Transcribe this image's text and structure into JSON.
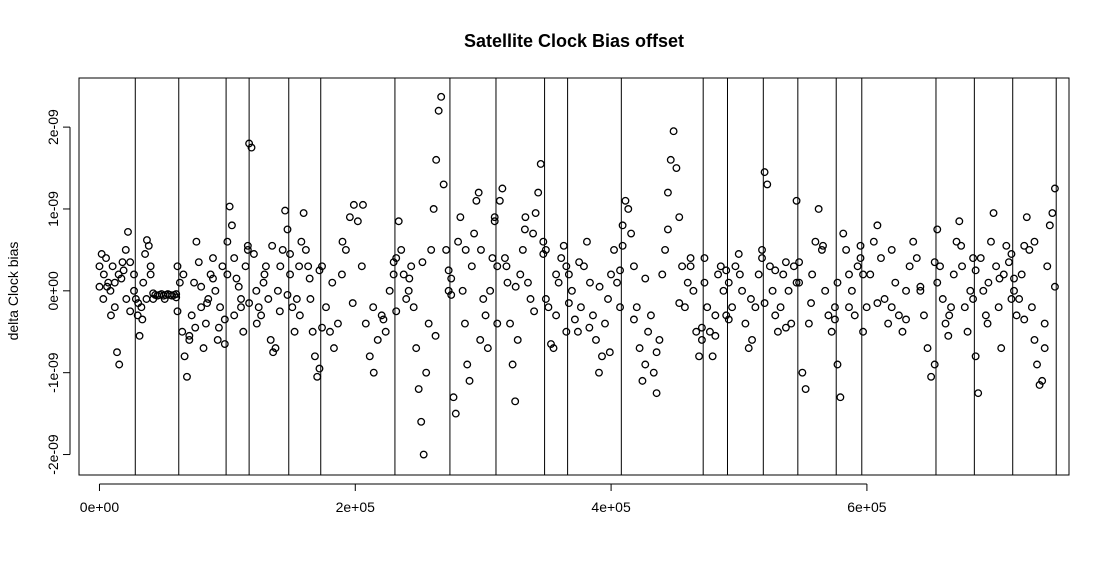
{
  "chart_data": {
    "type": "scatter",
    "title": "Satellite Clock Bias offset",
    "xlabel": "",
    "ylabel": "delta Clock bias",
    "xlim": [
      -16000,
      758000
    ],
    "ylim": [
      -2.25e-09,
      2.6e-09
    ],
    "x_ticks": [
      {
        "value": 0,
        "label": "0e+00"
      },
      {
        "value": 200000,
        "label": "2e+05"
      },
      {
        "value": 400000,
        "label": "4e+05"
      },
      {
        "value": 600000,
        "label": "6e+05"
      }
    ],
    "y_ticks": [
      {
        "value": -2e-09,
        "label": "-2e-09"
      },
      {
        "value": -1e-09,
        "label": "-1e-09"
      },
      {
        "value": 0,
        "label": "0e+00"
      },
      {
        "value": 1e-09,
        "label": "1e-09"
      },
      {
        "value": 2e-09,
        "label": "2e-09"
      }
    ],
    "vertical_lines_x": [
      28000,
      62000,
      99000,
      117000,
      148000,
      173000,
      231000,
      274000,
      310000,
      348000,
      366000,
      408000,
      472000,
      491000,
      519000,
      546000,
      576000,
      596000,
      654000,
      684000,
      714000,
      748000
    ],
    "segments": [
      [
        0,
        24000,
        [
          [
            0.3,
            0.45,
            0.2,
            0.4,
            0.1,
            0.0,
            0.3,
            -0.2,
            -0.75,
            -0.9,
            0.15,
            0.25,
            0.5,
            0.72,
            0.35
          ],
          [
            0.05,
            -0.1,
            0.05,
            -0.3,
            0.1,
            0.2,
            0.35,
            -0.1,
            -0.25
          ]
        ]
      ],
      [
        27000,
        40000,
        [
          [
            0.2,
            -0.1,
            -0.3,
            -0.55,
            -0.2,
            0.1,
            0.45,
            0.62,
            0.55,
            0.3
          ],
          [
            0.0,
            -0.15,
            -0.35,
            -0.1,
            0.2
          ]
        ]
      ],
      [
        42000,
        60000,
        [
          [
            -0.03,
            -0.05,
            -0.06,
            -0.05,
            -0.04,
            -0.06,
            -0.05,
            -0.04,
            -0.05,
            -0.06,
            -0.05,
            -0.04
          ],
          [
            -0.1,
            -0.1,
            -0.08
          ]
        ]
      ],
      [
        61000,
        98000,
        [
          [
            0.3,
            0.1,
            -0.5,
            -0.8,
            -1.05,
            -0.6,
            -0.3,
            0.1,
            0.6,
            0.35,
            -0.2,
            -0.7,
            -0.4,
            -0.1,
            0.2,
            0.4,
            0.0,
            -0.6,
            -0.2,
            0.3,
            -0.35
          ],
          [
            -0.25,
            0.2,
            -0.55,
            -0.45,
            0.05,
            -0.15,
            0.15,
            -0.45,
            -0.65
          ]
        ]
      ],
      [
        100000,
        116000,
        [
          [
            0.6,
            1.03,
            0.8,
            0.4,
            0.15,
            0.05,
            -0.2,
            -0.5,
            0.3,
            0.55
          ],
          [
            0.2,
            -0.3,
            -0.1,
            0.5
          ]
        ]
      ],
      [
        117000,
        147000,
        [
          [
            1.8,
            1.75,
            0.45,
            0.0,
            -0.2,
            -0.3,
            0.1,
            0.3,
            -0.1,
            -0.6,
            -0.75,
            -0.7,
            0.0,
            0.3,
            0.5,
            0.98,
            0.75
          ],
          [
            -0.15,
            -0.4,
            0.2,
            0.55,
            -0.25,
            -0.05
          ]
        ]
      ],
      [
        149000,
        172000,
        [
          [
            0.2,
            -0.2,
            -0.5,
            -0.1,
            0.3,
            0.6,
            0.95,
            0.5,
            0.3,
            -0.1,
            -0.5,
            -0.8,
            -1.05,
            -0.95
          ],
          [
            0.45,
            -0.3,
            0.15,
            0.25
          ]
        ]
      ],
      [
        174000,
        230000,
        [
          [
            0.3,
            -0.2,
            -0.5,
            -0.7,
            -0.4,
            0.2,
            0.5,
            0.9,
            1.05,
            0.85,
            0.3,
            -0.4,
            -0.8,
            -1.0,
            -0.6,
            -0.3,
            -0.5,
            0.0,
            0.2
          ],
          [
            -0.45,
            0.1,
            0.6,
            -0.15,
            1.05,
            -0.2,
            -0.35,
            0.35
          ]
        ]
      ],
      [
        232000,
        273000,
        [
          [
            0.4,
            0.85,
            0.5,
            0.2,
            -0.1,
            0.0,
            0.3,
            -0.2,
            -0.7,
            -1.2,
            -1.6,
            -2.0,
            -1.0,
            -0.4,
            0.5,
            1.0,
            1.6,
            2.2,
            2.37,
            1.3,
            0.5,
            0.0
          ],
          [
            -0.25,
            0.15,
            0.35,
            -0.55,
            0.25
          ]
        ]
      ],
      [
        275000,
        309000,
        [
          [
            -0.05,
            -1.3,
            -1.5,
            0.6,
            0.9,
            0.0,
            -0.4,
            -0.9,
            -1.1,
            0.3,
            0.7,
            1.1,
            1.2,
            0.5,
            -0.1,
            -0.3,
            -0.7,
            0.0,
            0.4,
            0.85
          ],
          [
            0.15,
            0.5,
            -0.6,
            0.9
          ]
        ]
      ],
      [
        311000,
        347000,
        [
          [
            0.3,
            1.1,
            1.25,
            0.4,
            0.1,
            -0.4,
            -0.9,
            -1.35,
            -0.6,
            0.2,
            0.5,
            0.9,
            0.1,
            -0.1,
            0.7,
            0.95,
            1.2,
            1.55,
            0.6
          ],
          [
            -0.4,
            0.3,
            0.05,
            0.75,
            -0.25,
            0.45
          ]
        ]
      ],
      [
        349000,
        365000,
        [
          [
            0.5,
            -0.2,
            -0.65,
            -0.7,
            -0.3,
            0.1,
            0.4,
            0.55,
            0.3
          ],
          [
            -0.1,
            0.2,
            -0.5
          ]
        ]
      ],
      [
        367000,
        407000,
        [
          [
            0.2,
            0.0,
            -0.35,
            -0.5,
            -0.2,
            0.3,
            0.6,
            0.1,
            -0.3,
            -0.6,
            -1.0,
            -0.8,
            -0.4,
            -0.1,
            0.2,
            0.5,
            0.1,
            -0.2
          ],
          [
            -0.15,
            0.35,
            -0.45,
            0.05,
            -0.75,
            0.25
          ]
        ]
      ],
      [
        409000,
        471000,
        [
          [
            0.8,
            1.1,
            1.0,
            0.7,
            0.3,
            -0.2,
            -0.7,
            -1.1,
            -0.9,
            -0.5,
            -0.3,
            -1.0,
            -1.25,
            -0.6,
            0.2,
            0.5,
            1.2,
            1.6,
            1.95,
            1.5,
            0.9,
            0.3,
            -0.2,
            0.1,
            0.4,
            0.0,
            -0.5,
            -0.8,
            -0.6
          ],
          [
            0.55,
            -0.35,
            0.15,
            -0.75,
            0.75,
            -0.15,
            0.3,
            -0.45
          ]
        ]
      ],
      [
        473000,
        490000,
        [
          [
            0.4,
            -0.2,
            -0.5,
            -0.8,
            -0.3,
            0.2,
            0.3,
            0.0,
            -0.3
          ],
          [
            0.1,
            -0.55,
            0.25
          ]
        ]
      ],
      [
        492000,
        518000,
        [
          [
            0.1,
            -0.2,
            0.3,
            0.45,
            0.0,
            -0.4,
            -0.7,
            -0.6,
            -0.2,
            0.2,
            0.5
          ],
          [
            -0.35,
            0.2,
            -0.1,
            0.4
          ]
        ]
      ],
      [
        520000,
        545000,
        [
          [
            1.45,
            1.3,
            0.3,
            0.0,
            -0.3,
            -0.5,
            -0.2,
            0.2,
            0.35,
            0.0,
            -0.4,
            0.3,
            1.1
          ],
          [
            -0.15,
            0.25,
            -0.45,
            0.1
          ]
        ]
      ],
      [
        547000,
        575000,
        [
          [
            0.1,
            -1.0,
            -1.2,
            -0.4,
            0.2,
            0.6,
            1.0,
            0.5,
            0.0,
            -0.3,
            -0.5,
            -0.2
          ],
          [
            0.35,
            -0.15,
            0.55,
            -0.35
          ]
        ]
      ],
      [
        577000,
        595000,
        [
          [
            -0.9,
            -1.3,
            0.7,
            0.5,
            0.2,
            0.0,
            -0.3,
            0.3,
            0.55
          ],
          [
            0.1,
            -0.2,
            0.4
          ]
        ]
      ],
      [
        597000,
        653000,
        [
          [
            -0.5,
            -0.2,
            0.2,
            0.6,
            0.8,
            0.4,
            -0.1,
            -0.4,
            -0.2,
            0.1,
            -0.3,
            -0.5,
            0.0,
            0.3,
            0.6,
            0.4,
            0.0,
            -0.3,
            -0.7,
            -1.05,
            -0.9
          ],
          [
            0.2,
            -0.15,
            0.5,
            -0.35,
            0.05,
            0.35
          ]
        ]
      ],
      [
        655000,
        683000,
        [
          [
            0.75,
            0.3,
            -0.1,
            -0.4,
            -0.55,
            -0.2,
            0.2,
            0.6,
            0.85,
            0.3,
            -0.2,
            -0.5,
            0.0,
            0.4
          ],
          [
            0.1,
            -0.3,
            0.55,
            -0.1
          ]
        ]
      ],
      [
        685000,
        713000,
        [
          [
            -0.8,
            -1.25,
            0.4,
            0.0,
            -0.3,
            0.1,
            0.6,
            0.95,
            0.3,
            -0.2,
            -0.7,
            0.2,
            0.55,
            0.35,
            -0.1
          ],
          [
            0.25,
            -0.4,
            0.15,
            0.45
          ]
        ]
      ],
      [
        715000,
        747000,
        [
          [
            0.0,
            -0.3,
            -0.1,
            0.2,
            0.55,
            0.9,
            0.5,
            -0.2,
            -0.6,
            -0.9,
            -1.15,
            -1.1,
            -0.4,
            0.3,
            0.8,
            0.95,
            1.25
          ],
          [
            0.15,
            -0.35,
            0.6,
            -0.7,
            0.05
          ]
        ]
      ]
    ]
  }
}
